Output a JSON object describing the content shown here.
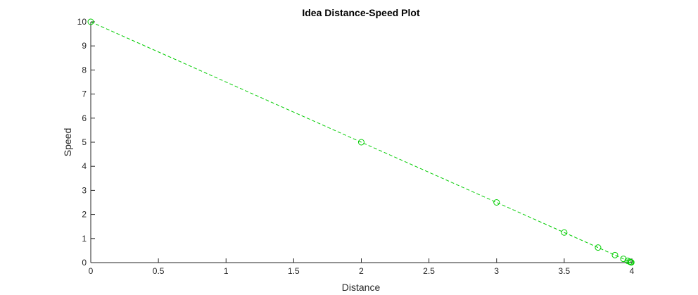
{
  "chart_data": {
    "type": "line",
    "title": "Idea Distance-Speed Plot",
    "xlabel": "Distance",
    "ylabel": "Speed",
    "xlim": [
      0,
      4
    ],
    "ylim": [
      0,
      10
    ],
    "x_ticks": [
      "0",
      "0.5",
      "1",
      "1.5",
      "2",
      "2.5",
      "3",
      "3.5",
      "4"
    ],
    "y_ticks": [
      "0",
      "1",
      "2",
      "3",
      "4",
      "5",
      "6",
      "7",
      "8",
      "9",
      "10"
    ],
    "grid": false,
    "line_style": "dashed",
    "marker": "circle",
    "series": [
      {
        "color": "#00cc00",
        "x": [
          0,
          2,
          3,
          3.5,
          3.75,
          3.875,
          3.9375,
          3.96875,
          3.984375,
          3.9921875,
          3.99609375
        ],
        "y": [
          10,
          5,
          2.5,
          1.25,
          0.625,
          0.3125,
          0.15625,
          0.078125,
          0.0390625,
          0.01953125,
          0.009765625
        ]
      }
    ]
  }
}
